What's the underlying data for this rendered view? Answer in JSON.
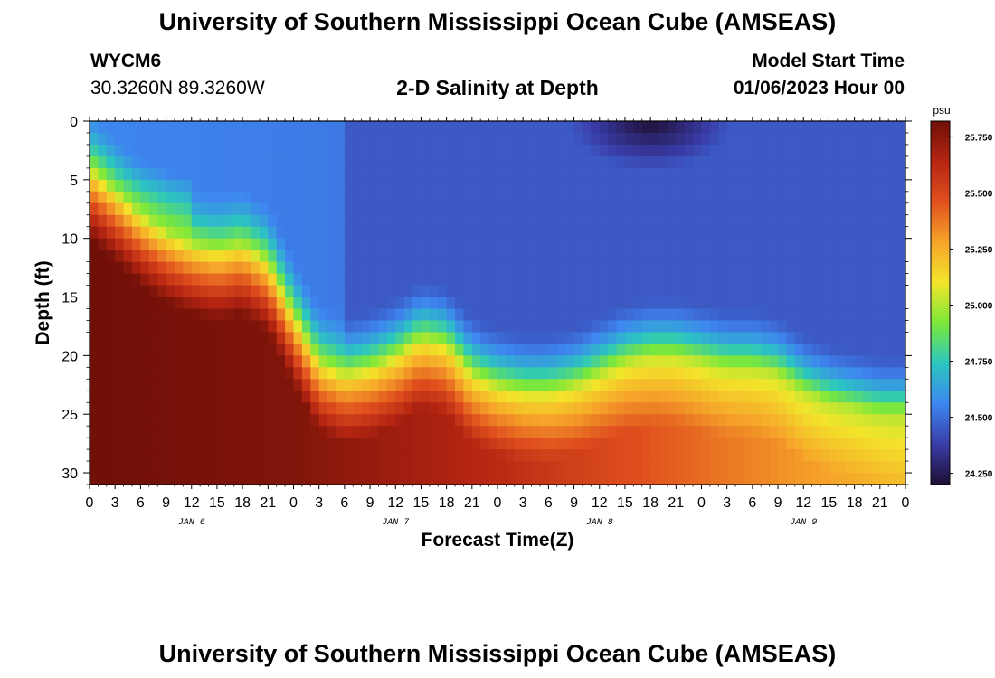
{
  "header": {
    "title": "University of Southern Mississippi Ocean Cube (AMSEAS)",
    "station_id": "WYCM6",
    "station_coords": "30.3260N  89.3260W",
    "plot_title": "2-D Salinity at Depth",
    "model_start_label": "Model Start Time",
    "model_start_value": "01/06/2023 Hour 00"
  },
  "footer": {
    "title": "University of Southern Mississippi Ocean Cube (AMSEAS)"
  },
  "colors": {
    "colormap": [
      "#1e0f33",
      "#3a3ca8",
      "#3e86f0",
      "#2bc6c0",
      "#7be83a",
      "#f3e52a",
      "#f6a42a",
      "#e0501e",
      "#b52512",
      "#701008"
    ],
    "axis": "#000000"
  },
  "chart_data": {
    "type": "heatmap",
    "xlabel": "Forecast Time(Z)",
    "ylabel": "Depth (ft)",
    "x_range_hours": [
      0,
      96
    ],
    "ylim": [
      0,
      31
    ],
    "y_inverted": true,
    "x_tick_labels": [
      "0",
      "3",
      "6",
      "9",
      "12",
      "15",
      "18",
      "21",
      "0",
      "3",
      "6",
      "9",
      "12",
      "15",
      "18",
      "21",
      "0",
      "3",
      "6",
      "9",
      "12",
      "15",
      "18",
      "21",
      "0",
      "3",
      "6",
      "9",
      "12",
      "15",
      "18",
      "21",
      "0"
    ],
    "day_labels": [
      {
        "hour": 12,
        "text": "JAN 6"
      },
      {
        "hour": 36,
        "text": "JAN 7"
      },
      {
        "hour": 60,
        "text": "JAN 8"
      },
      {
        "hour": 84,
        "text": "JAN 9"
      }
    ],
    "y_ticks": [
      0,
      5,
      10,
      15,
      20,
      25,
      30
    ],
    "colorbar": {
      "unit": "psu",
      "range": [
        24.2,
        25.82
      ],
      "tick_values": [
        24.25,
        24.5,
        24.75,
        25.0,
        25.25,
        25.5,
        25.75
      ],
      "tick_labels": [
        "24.250",
        "24.500",
        "24.750",
        "25.000",
        "25.250",
        "25.500",
        "25.750"
      ]
    },
    "halocline": {
      "description": "depth (ft) of the 25.0 psu transition vs forecast hour",
      "hours": [
        0,
        3,
        6,
        9,
        12,
        15,
        18,
        21,
        24,
        27,
        30,
        33,
        36,
        39,
        42,
        45,
        48,
        51,
        54,
        57,
        60,
        63,
        66,
        69,
        72,
        75,
        78,
        81,
        84,
        87,
        90,
        93,
        96
      ],
      "depth_ft": [
        4,
        6,
        8,
        9.5,
        10.5,
        11,
        10.5,
        12,
        16.5,
        20.5,
        21.5,
        21,
        20,
        18.5,
        19,
        21.5,
        22.5,
        23,
        23,
        22.5,
        21.5,
        20.5,
        20,
        20,
        20.5,
        21,
        21,
        21.5,
        23,
        24,
        24.5,
        25,
        25
      ]
    },
    "surface_min": {
      "hour": 66,
      "depth_ft": 0,
      "value": 24.2
    },
    "shallow_fresh_spot": {
      "hour": 15,
      "depth_ft": 4,
      "value": 24.6
    },
    "bottom_values": {
      "hours": [
        0,
        24,
        48,
        60,
        72,
        84,
        96
      ],
      "psu": [
        25.82,
        25.78,
        25.62,
        25.5,
        25.4,
        25.3,
        25.22
      ]
    }
  }
}
